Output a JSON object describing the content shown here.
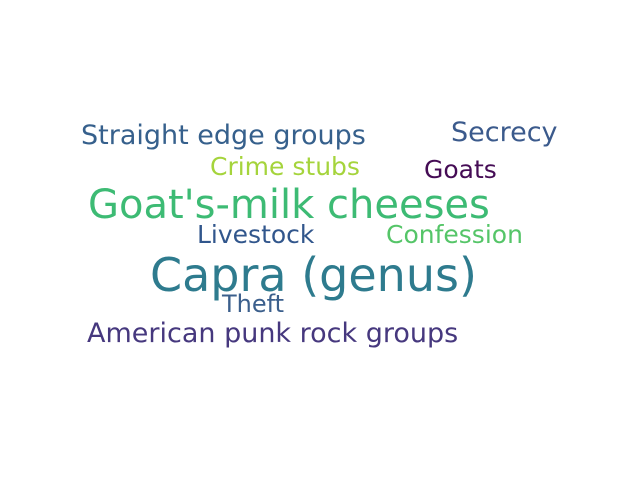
{
  "words": [
    {
      "text": "Capra (genus)",
      "weight": 1.0,
      "color": "#2e7b8e"
    },
    {
      "text": "Goat's-milk cheeses",
      "weight": 0.7,
      "color": "#3dbb74"
    },
    {
      "text": "American punk rock groups",
      "weight": 0.48,
      "color": "#46387e"
    },
    {
      "text": "Straight edge groups",
      "weight": 0.48,
      "color": "#36608c"
    },
    {
      "text": "Secrecy",
      "weight": 0.44,
      "color": "#3b5a8c"
    },
    {
      "text": "Livestock",
      "weight": 0.46,
      "color": "#31568c"
    },
    {
      "text": "Confession",
      "weight": 0.46,
      "color": "#55c568"
    },
    {
      "text": "Goats",
      "weight": 0.44,
      "color": "#450c55"
    },
    {
      "text": "Crime stubs",
      "weight": 0.44,
      "color": "#a5d43c"
    },
    {
      "text": "Theft",
      "weight": 0.42,
      "color": "#3b5f8c"
    }
  ]
}
